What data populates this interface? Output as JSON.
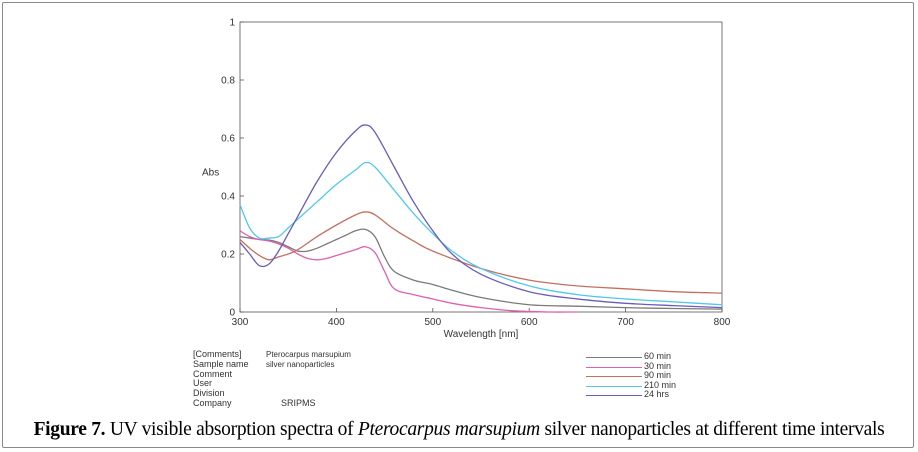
{
  "chart_data": {
    "type": "line",
    "title": "",
    "xlabel": "Wavelength [nm]",
    "ylabel": "Abs",
    "xlim": [
      300,
      800
    ],
    "ylim": [
      0,
      1
    ],
    "x_ticks": [
      300,
      400,
      500,
      600,
      700,
      800
    ],
    "y_ticks": [
      "0",
      "0.2",
      "0.4",
      "0.6",
      "0.8",
      "1"
    ],
    "series": [
      {
        "name": "60 min",
        "color": "#7a7a7a",
        "x": [
          300,
          310,
          320,
          330,
          340,
          350,
          360,
          370,
          380,
          390,
          400,
          410,
          420,
          430,
          440,
          450,
          460,
          480,
          500,
          520,
          550,
          600,
          650,
          700,
          750,
          800
        ],
        "y": [
          0.26,
          0.255,
          0.25,
          0.248,
          0.24,
          0.225,
          0.21,
          0.21,
          0.22,
          0.235,
          0.25,
          0.265,
          0.28,
          0.285,
          0.26,
          0.19,
          0.14,
          0.11,
          0.095,
          0.075,
          0.05,
          0.025,
          0.02,
          0.015,
          0.012,
          0.01
        ]
      },
      {
        "name": "30 min",
        "color": "#e060b0",
        "x": [
          300,
          310,
          320,
          330,
          340,
          350,
          360,
          370,
          380,
          390,
          400,
          410,
          420,
          430,
          440,
          450,
          460,
          480,
          500,
          520,
          550,
          580,
          600,
          620,
          650
        ],
        "y": [
          0.28,
          0.26,
          0.25,
          0.245,
          0.235,
          0.22,
          0.2,
          0.185,
          0.18,
          0.185,
          0.195,
          0.205,
          0.215,
          0.225,
          0.205,
          0.14,
          0.08,
          0.06,
          0.045,
          0.03,
          0.015,
          0.005,
          0.002,
          0.0,
          0.0
        ]
      },
      {
        "name": "90 min",
        "color": "#c47060",
        "x": [
          300,
          310,
          320,
          330,
          340,
          350,
          360,
          380,
          400,
          420,
          430,
          440,
          460,
          480,
          500,
          550,
          600,
          650,
          700,
          750,
          800
        ],
        "y": [
          0.25,
          0.22,
          0.195,
          0.18,
          0.19,
          0.2,
          0.215,
          0.26,
          0.3,
          0.335,
          0.345,
          0.335,
          0.285,
          0.245,
          0.21,
          0.15,
          0.11,
          0.09,
          0.08,
          0.07,
          0.065
        ]
      },
      {
        "name": "210 min",
        "color": "#50c8ee",
        "x": [
          300,
          310,
          320,
          330,
          340,
          350,
          360,
          380,
          400,
          420,
          430,
          440,
          460,
          480,
          500,
          520,
          550,
          600,
          650,
          700,
          750,
          800
        ],
        "y": [
          0.37,
          0.29,
          0.255,
          0.255,
          0.26,
          0.29,
          0.32,
          0.38,
          0.44,
          0.49,
          0.515,
          0.5,
          0.42,
          0.34,
          0.27,
          0.21,
          0.15,
          0.09,
          0.06,
          0.045,
          0.035,
          0.025
        ]
      },
      {
        "name": "24 hrs",
        "color": "#6a5cb8",
        "x": [
          300,
          310,
          320,
          330,
          340,
          350,
          360,
          380,
          400,
          420,
          430,
          440,
          460,
          480,
          500,
          520,
          550,
          600,
          650,
          700,
          750,
          800
        ],
        "y": [
          0.24,
          0.2,
          0.16,
          0.165,
          0.21,
          0.27,
          0.33,
          0.45,
          0.55,
          0.625,
          0.645,
          0.62,
          0.5,
          0.38,
          0.28,
          0.2,
          0.13,
          0.07,
          0.045,
          0.03,
          0.022,
          0.015
        ]
      }
    ]
  },
  "metadata": {
    "rows": [
      {
        "key": "[Comments]",
        "value": "Pterocarpus marsupium"
      },
      {
        "key": "Sample name",
        "value": "silver nanoparticles"
      },
      {
        "key": "Comment",
        "value": ""
      },
      {
        "key": "User",
        "value": ""
      },
      {
        "key": "Division",
        "value": ""
      },
      {
        "key": "Company",
        "value": "SRIPMS"
      }
    ]
  },
  "caption": {
    "label": "Figure 7.",
    "text_before": " UV visible absorption spectra of ",
    "italic": "Pterocarpus marsupium",
    "text_after": " silver nanoparticles at different time intervals"
  }
}
